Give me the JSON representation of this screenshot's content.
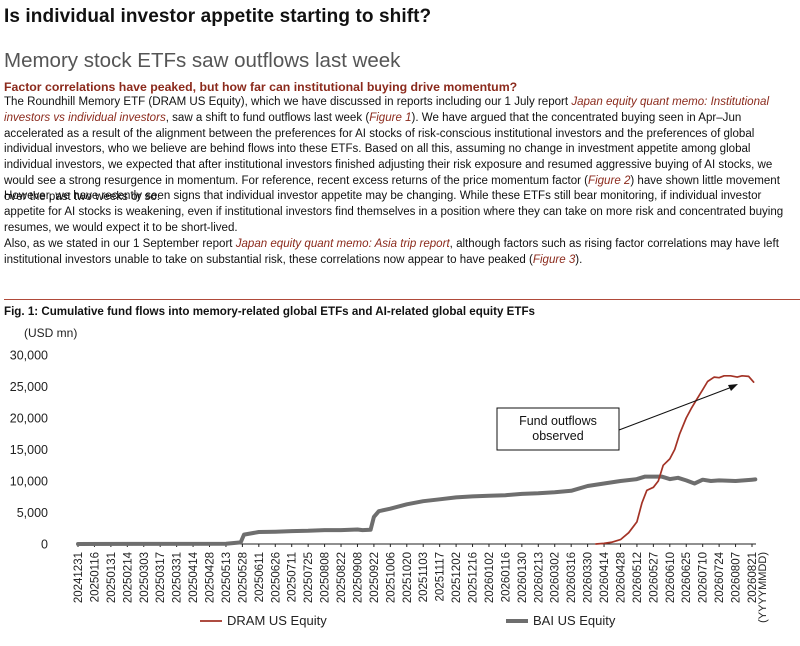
{
  "header": {
    "title": "Is individual investor appetite starting to shift?",
    "section": "Memory stock ETFs saw outflows last week",
    "subhead": "Factor correlations have peaked, but how far can institutional buying drive momentum?"
  },
  "body": {
    "p1a": "The Roundhill Memory ETF (DRAM US Equity), which we have discussed in reports including our 1 July report ",
    "p1ref": "Japan equity quant memo: Institutional investors vs individual investors",
    "p1b": ", saw a shift to fund outflows last week (",
    "p1fig": "Figure 1",
    "p1c": "). We have argued that the concentrated buying seen in Apr–Jun accelerated as a result of the alignment between the preferences for AI stocks of risk-conscious institutional investors and the preferences of global individual investors, who we believe are behind flows into these ETFs. Based on all this, assuming no change in investment appetite among global individual investors, we expected that after institutional investors finished adjusting their risk exposure and resumed aggressive buying of AI stocks, we would see a strong resurgence in momentum. For reference, recent excess returns of the price momentum factor (",
    "p1fig2": "Figure 2",
    "p1d": ") have shown little movement over the past two weeks or so.",
    "p2": "However, we have recently seen signs that individual investor appetite may be changing. While these ETFs still bear monitoring, if individual investor appetite for AI stocks is weakening, even if institutional investors find themselves in a position where they can take on more risk and concentrated buying resumes, we would expect it to be short-lived.",
    "p3a": "Also, as we stated in our 1 September report ",
    "p3ref": "Japan equity quant memo: Asia trip report",
    "p3b": ", although factors such as rising factor correlations may have left institutional investors unable to take on substantial risk, these correlations now appear to have peaked (",
    "p3fig": "Figure 3",
    "p3c": ")."
  },
  "figure": {
    "title": "Fig. 1: Cumulative fund flows into memory-related global ETFs and AI-related global equity ETFs"
  },
  "chart_data": {
    "type": "line",
    "unit_label": "(USD mn)",
    "x_axis_label": "(YYYYMMDD)",
    "ylim": [
      0,
      30000
    ],
    "y_ticks": [
      "0",
      "5,000",
      "10,000",
      "15,000",
      "20,000",
      "25,000",
      "30,000"
    ],
    "x_ticks": [
      "20241231",
      "20250116",
      "20250131",
      "20250214",
      "20250303",
      "20250317",
      "20250331",
      "20250414",
      "20250428",
      "20250513",
      "20250528",
      "20250611",
      "20250626",
      "20250711",
      "20250725",
      "20250808",
      "20250822",
      "20250908",
      "20250922",
      "20251006",
      "20251020",
      "20251103",
      "20251117",
      "20251202",
      "20251216",
      "20260102",
      "20260116",
      "20260130",
      "20260213",
      "20260302",
      "20260316",
      "20260330",
      "20260414",
      "20260428",
      "20260512",
      "20260527",
      "20260610",
      "20260625",
      "20260710",
      "20260724",
      "20260807",
      "20260821"
    ],
    "annotation": "Fund outflows observed",
    "annotation_lines": [
      "Fund outflows",
      "observed"
    ],
    "grid": false,
    "legend_position": "bottom",
    "series": [
      {
        "name": "DRAM US Equity",
        "color": "#a33326",
        "points": [
          [
            31.5,
            0
          ],
          [
            32,
            100
          ],
          [
            32.5,
            300
          ],
          [
            33,
            700
          ],
          [
            33.5,
            1800
          ],
          [
            34,
            3500
          ],
          [
            34.3,
            6500
          ],
          [
            34.6,
            8500
          ],
          [
            35,
            9000
          ],
          [
            35.3,
            10000
          ],
          [
            35.6,
            12500
          ],
          [
            36,
            13500
          ],
          [
            36.3,
            15000
          ],
          [
            36.6,
            17500
          ],
          [
            37,
            20000
          ],
          [
            37.3,
            21500
          ],
          [
            37.6,
            22800
          ],
          [
            38,
            24500
          ],
          [
            38.3,
            25800
          ],
          [
            38.7,
            26500
          ],
          [
            39,
            26400
          ],
          [
            39.3,
            26700
          ],
          [
            39.7,
            26700
          ],
          [
            40.1,
            26500
          ],
          [
            40.4,
            26700
          ],
          [
            40.8,
            26600
          ],
          [
            41.1,
            25700
          ]
        ]
      },
      {
        "name": "BAI US Equity",
        "color": "#6e6e6e",
        "points": [
          [
            0,
            0
          ],
          [
            9,
            40
          ],
          [
            9.9,
            250
          ],
          [
            10.1,
            1500
          ],
          [
            11,
            1900
          ],
          [
            12,
            1950
          ],
          [
            13,
            2050
          ],
          [
            14,
            2100
          ],
          [
            15,
            2200
          ],
          [
            16,
            2200
          ],
          [
            17,
            2300
          ],
          [
            17.3,
            2200
          ],
          [
            17.8,
            2250
          ],
          [
            18,
            4300
          ],
          [
            18.3,
            5200
          ],
          [
            19,
            5600
          ],
          [
            20,
            6300
          ],
          [
            21,
            6800
          ],
          [
            22,
            7100
          ],
          [
            23,
            7400
          ],
          [
            24,
            7550
          ],
          [
            25,
            7650
          ],
          [
            26,
            7750
          ],
          [
            27,
            7950
          ],
          [
            28,
            8050
          ],
          [
            29,
            8200
          ],
          [
            30,
            8450
          ],
          [
            31,
            9200
          ],
          [
            32,
            9600
          ],
          [
            33,
            10000
          ],
          [
            34,
            10300
          ],
          [
            34.5,
            10700
          ],
          [
            35.5,
            10700
          ],
          [
            36,
            10300
          ],
          [
            36.5,
            10500
          ],
          [
            37,
            10100
          ],
          [
            37.5,
            9600
          ],
          [
            38,
            10200
          ],
          [
            38.5,
            10000
          ],
          [
            39,
            10100
          ],
          [
            40,
            10000
          ],
          [
            41,
            10200
          ],
          [
            41.2,
            10250
          ]
        ]
      }
    ]
  }
}
